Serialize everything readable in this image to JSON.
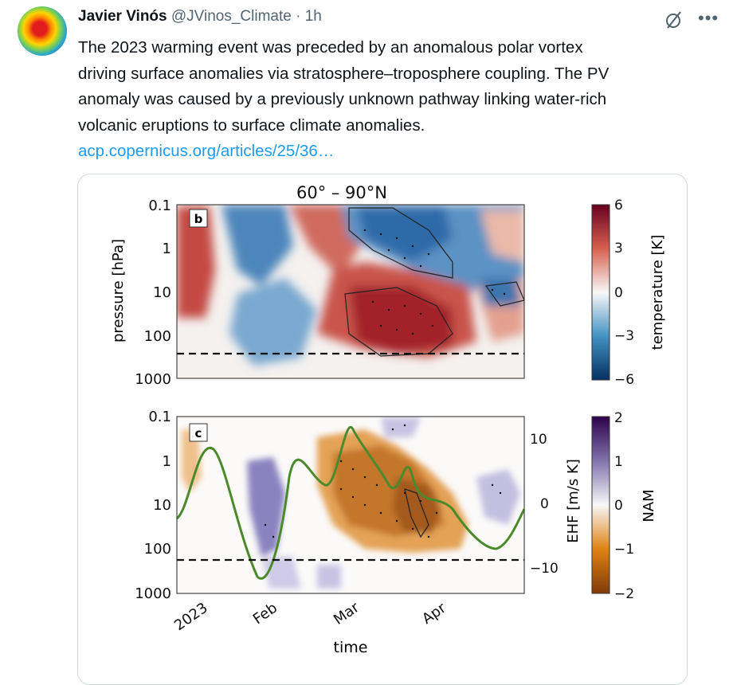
{
  "tweet": {
    "author_name": "Javier Vinós",
    "handle": "@JVinos_Climate",
    "separator": "·",
    "time": "1h",
    "text_lines": [
      "The 2023 warming event was preceded by an anomalous polar vortex",
      "driving surface anomalies via stratosphere–troposphere coupling. The PV",
      "anomaly was caused by a previously unknown pathway linking water-rich",
      "volcanic eruptions to surface climate anomalies."
    ],
    "link": "acp.copernicus.org/articles/25/36…"
  },
  "figure": {
    "title": "60° – 90°N",
    "panel_b_label": "b",
    "panel_c_label": "c",
    "y_ticks": [
      "0.1",
      "1",
      "10",
      "100",
      "1000"
    ],
    "y_label": "pressure [hPa]",
    "x_ticks": [
      "2023",
      "Feb",
      "Mar",
      "Apr"
    ],
    "x_label": "time",
    "ehf_ticks": [
      "10",
      "0",
      "−10"
    ],
    "ehf_label": "EHF [m/s K]",
    "temp_ticks": [
      "6",
      "3",
      "0",
      "−3",
      "−6"
    ],
    "temp_label": "temperature [K]",
    "nam_ticks": [
      "2",
      "1",
      "0",
      "−1",
      "−2"
    ],
    "nam_label": "NAM"
  },
  "colors": {
    "link": "#1d9bf0",
    "warm": "#a3232a",
    "cold": "#1d5b9a",
    "nam_positive": "#6b63b0",
    "nam_negative": "#b5651d",
    "ehf_line": "#4a8a2a"
  },
  "chart_data": [
    {
      "type": "heatmap",
      "panel": "b",
      "title": "60° – 90°N",
      "ylabel": "pressure [hPa]",
      "ylim": [
        1000,
        0.1
      ],
      "y_scale": "log",
      "colorbar": {
        "label": "temperature [K]",
        "range": [
          -6,
          6
        ],
        "ticks": [
          6,
          3,
          0,
          -3,
          -6
        ]
      }
    },
    {
      "type": "heatmap",
      "panel": "c",
      "xlabel": "time",
      "x_ticks": [
        "2023",
        "Feb",
        "Mar",
        "Apr"
      ],
      "ylabel": "pressure [hPa]",
      "ylim": [
        1000,
        0.1
      ],
      "y_scale": "log",
      "secondary_axis": {
        "label": "EHF [m/s K]",
        "ticks": [
          10,
          0,
          -10
        ]
      },
      "colorbar": {
        "label": "NAM",
        "range": [
          -2,
          2
        ],
        "ticks": [
          2,
          1,
          0,
          -1,
          -2
        ]
      }
    }
  ]
}
